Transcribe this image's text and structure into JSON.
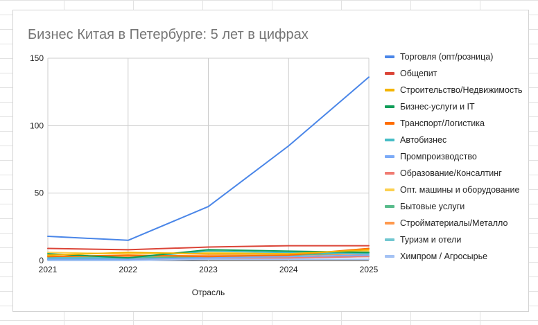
{
  "chart_data": {
    "type": "line",
    "title": "Бизнес Китая в Петербурге: 5 лет в цифрах",
    "xlabel": "Отрасль",
    "ylabel": "",
    "x": [
      "2021",
      "2022",
      "2023",
      "2024",
      "2025"
    ],
    "ylim": [
      0,
      150
    ],
    "yticks": [
      "0",
      "50",
      "100",
      "150"
    ],
    "grid": true,
    "legend_position": "right",
    "series": [
      {
        "name": "Торговля (опт/розница)",
        "color": "#4a86e8",
        "values": [
          18,
          15,
          40,
          85,
          136
        ]
      },
      {
        "name": "Общепит",
        "color": "#db4437",
        "values": [
          9,
          8,
          10,
          11,
          11
        ]
      },
      {
        "name": "Строительство/Недвижимость",
        "color": "#f4b400",
        "values": [
          4,
          6,
          5,
          5,
          8
        ]
      },
      {
        "name": "Бизнес-услуги и IT",
        "color": "#0f9d58",
        "values": [
          5,
          2,
          8,
          7,
          6
        ]
      },
      {
        "name": "Транспорт/Логистика",
        "color": "#ff6d00",
        "values": [
          3,
          4,
          3,
          4,
          9
        ]
      },
      {
        "name": "Автобизнес",
        "color": "#46bdc6",
        "values": [
          2,
          2,
          7,
          6,
          5
        ]
      },
      {
        "name": "Промпроизводство",
        "color": "#7baaf7",
        "values": [
          1,
          1,
          2,
          3,
          4
        ]
      },
      {
        "name": "Образование/Консалтинг",
        "color": "#f07b72",
        "values": [
          2,
          1,
          2,
          2,
          3
        ]
      },
      {
        "name": "Опт. машины и оборудование",
        "color": "#fcd04f",
        "values": [
          6,
          5,
          6,
          5,
          7
        ]
      },
      {
        "name": "Бытовые услуги",
        "color": "#57bb8a",
        "values": [
          1,
          2,
          3,
          4,
          6
        ]
      },
      {
        "name": "Стройматериалы/Металло",
        "color": "#ff994d",
        "values": [
          3,
          3,
          4,
          4,
          5
        ]
      },
      {
        "name": "Туризм и отели",
        "color": "#71c7d0",
        "values": [
          1,
          1,
          2,
          2,
          3
        ]
      },
      {
        "name": "Химпром / Агросырье",
        "color": "#a4c2f4",
        "values": [
          0,
          0,
          1,
          1,
          1
        ]
      }
    ]
  }
}
